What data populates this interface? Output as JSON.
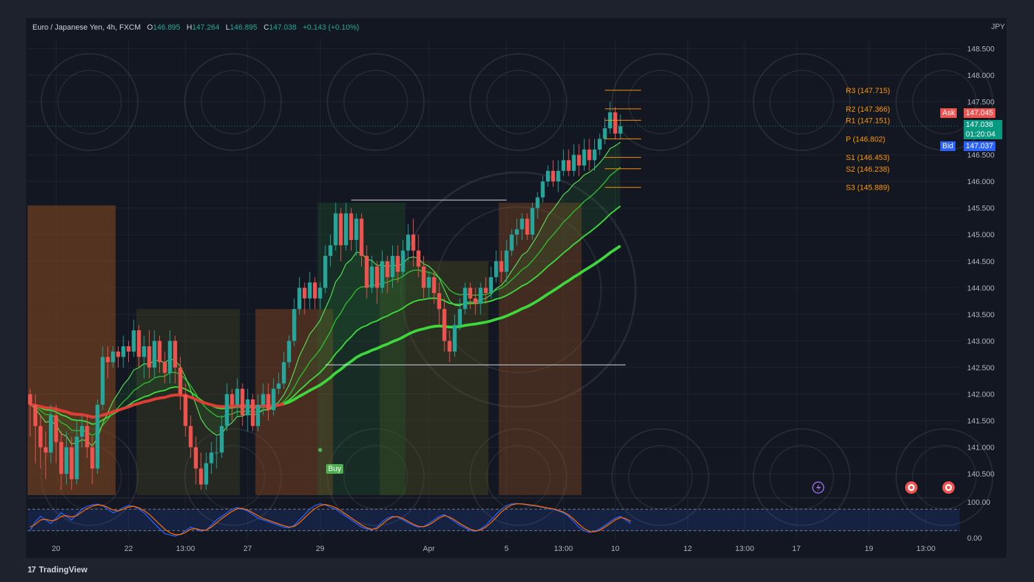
{
  "header": {
    "symbol": "Euro / Japanese Yen, 4h, FXCM",
    "open_key": "O",
    "open": "146.895",
    "high_key": "H",
    "high": "147.264",
    "low_key": "L",
    "low": "146.895",
    "close_key": "C",
    "close": "147.038",
    "change": "+0.143 (+0.10%)"
  },
  "currency": "JPY",
  "branding": "TradingView",
  "quote": {
    "ask_label": "Ask",
    "ask": "147.045",
    "last": "147.038",
    "countdown": "01:20:04",
    "bid_label": "Bid",
    "bid": "147.037"
  },
  "signal_label": "Buy",
  "colors": {
    "background": "#131722",
    "up": "#26a69a",
    "down": "#ef5350",
    "pivot": "#ff9800",
    "ema_green": "#3dd63d",
    "ema_red": "#e53935",
    "ask": "#ef5350",
    "bid": "#2962ff",
    "last": "#089981"
  },
  "chart_data": {
    "type": "candlestick",
    "ylim": [
      140.1,
      148.7
    ],
    "y_ticks": [
      "148.500",
      "148.000",
      "147.500",
      "146.500",
      "146.000",
      "145.500",
      "145.000",
      "144.500",
      "144.000",
      "143.500",
      "143.000",
      "142.500",
      "142.000",
      "141.500",
      "141.000",
      "140.500"
    ],
    "y_tick_values": [
      148.5,
      148.0,
      147.5,
      146.5,
      146.0,
      145.5,
      145.0,
      144.5,
      144.0,
      143.5,
      143.0,
      142.5,
      142.0,
      141.5,
      141.0,
      140.5
    ],
    "x_ticks": [
      {
        "label": "20",
        "index": 5
      },
      {
        "label": "22",
        "index": 19
      },
      {
        "label": "13:00",
        "index": 30
      },
      {
        "label": "27",
        "index": 42
      },
      {
        "label": "29",
        "index": 56
      },
      {
        "label": "Apr",
        "index": 77
      },
      {
        "label": "5",
        "index": 92
      },
      {
        "label": "13:00",
        "index": 103
      },
      {
        "label": "10",
        "index": 113
      },
      {
        "label": "12",
        "index": 127
      },
      {
        "label": "13:00",
        "index": 138
      },
      {
        "label": "17",
        "index": 148
      },
      {
        "label": "19",
        "index": 162
      },
      {
        "label": "13:00",
        "index": 173
      }
    ],
    "total_slots": 180,
    "candles": [
      [
        142.0,
        141.8,
        142.1,
        141.2
      ],
      [
        141.8,
        141.4,
        142.0,
        140.7
      ],
      [
        141.4,
        141.0,
        141.6,
        140.6
      ],
      [
        141.0,
        140.9,
        141.3,
        140.4
      ],
      [
        140.9,
        141.6,
        141.8,
        140.7
      ],
      [
        141.6,
        141.1,
        141.8,
        140.7
      ],
      [
        141.1,
        140.5,
        141.3,
        140.2
      ],
      [
        140.5,
        141.0,
        141.3,
        140.3
      ],
      [
        141.0,
        140.4,
        141.2,
        140.2
      ],
      [
        140.4,
        141.2,
        141.5,
        140.3
      ],
      [
        141.2,
        141.4,
        141.6,
        141.0
      ],
      [
        141.4,
        141.0,
        141.6,
        140.8
      ],
      [
        141.0,
        140.6,
        141.2,
        140.3
      ],
      [
        140.6,
        141.8,
        141.9,
        140.5
      ],
      [
        141.8,
        142.7,
        142.9,
        141.7
      ],
      [
        142.7,
        142.6,
        142.9,
        142.3
      ],
      [
        142.6,
        142.8,
        142.9,
        142.5
      ],
      [
        142.8,
        142.7,
        142.9,
        142.5
      ],
      [
        142.7,
        142.9,
        143.1,
        142.5
      ],
      [
        142.9,
        142.8,
        143.0,
        142.6
      ],
      [
        142.8,
        143.2,
        143.4,
        142.7
      ],
      [
        143.2,
        142.7,
        143.3,
        142.5
      ],
      [
        142.7,
        142.9,
        143.1,
        142.3
      ],
      [
        142.9,
        142.5,
        143.2,
        142.3
      ],
      [
        142.5,
        143.0,
        143.2,
        142.3
      ],
      [
        143.0,
        142.6,
        143.1,
        142.4
      ],
      [
        142.6,
        142.4,
        142.8,
        142.2
      ],
      [
        142.4,
        143.0,
        143.2,
        142.2
      ],
      [
        143.0,
        142.5,
        143.1,
        142.2
      ],
      [
        142.5,
        142.0,
        142.7,
        141.7
      ],
      [
        142.0,
        141.4,
        142.2,
        141.2
      ],
      [
        141.4,
        141.0,
        141.6,
        140.8
      ],
      [
        141.0,
        140.6,
        141.2,
        140.3
      ],
      [
        140.6,
        140.3,
        140.9,
        140.2
      ],
      [
        140.3,
        140.7,
        140.9,
        140.2
      ],
      [
        140.7,
        140.9,
        141.1,
        140.5
      ],
      [
        140.9,
        140.9,
        141.2,
        140.6
      ],
      [
        140.9,
        141.4,
        141.6,
        140.8
      ],
      [
        141.4,
        142.0,
        142.2,
        141.3
      ],
      [
        142.0,
        141.8,
        142.1,
        141.5
      ],
      [
        141.8,
        142.1,
        142.3,
        141.6
      ],
      [
        142.1,
        141.6,
        142.2,
        141.4
      ],
      [
        141.6,
        141.9,
        142.1,
        141.3
      ],
      [
        141.9,
        141.4,
        142.0,
        141.3
      ],
      [
        141.4,
        141.8,
        142.0,
        141.3
      ],
      [
        141.8,
        142.0,
        142.2,
        141.6
      ],
      [
        142.0,
        141.7,
        142.2,
        141.5
      ],
      [
        141.7,
        142.1,
        142.3,
        141.6
      ],
      [
        142.1,
        142.2,
        142.4,
        142.0
      ],
      [
        142.2,
        142.6,
        142.8,
        142.1
      ],
      [
        142.6,
        143.0,
        143.1,
        142.5
      ],
      [
        143.0,
        143.6,
        143.8,
        142.9
      ],
      [
        143.6,
        144.0,
        144.2,
        143.5
      ],
      [
        144.0,
        143.8,
        144.1,
        143.5
      ],
      [
        143.8,
        144.1,
        144.3,
        143.6
      ],
      [
        144.1,
        143.8,
        144.2,
        143.6
      ],
      [
        143.8,
        144.0,
        144.1,
        143.6
      ],
      [
        144.0,
        144.6,
        144.8,
        143.9
      ],
      [
        144.6,
        144.8,
        145.0,
        144.4
      ],
      [
        144.8,
        145.4,
        145.6,
        144.7
      ],
      [
        145.4,
        144.8,
        145.5,
        144.5
      ],
      [
        144.8,
        145.4,
        145.6,
        144.7
      ],
      [
        145.4,
        144.9,
        145.5,
        144.7
      ],
      [
        144.9,
        145.3,
        145.4,
        144.6
      ],
      [
        145.3,
        144.6,
        145.4,
        144.4
      ],
      [
        144.6,
        144.0,
        144.8,
        143.8
      ],
      [
        144.0,
        144.4,
        144.6,
        143.9
      ],
      [
        144.4,
        144.0,
        144.5,
        143.7
      ],
      [
        144.0,
        144.5,
        144.7,
        143.9
      ],
      [
        144.5,
        144.2,
        144.6,
        143.9
      ],
      [
        144.2,
        144.6,
        144.8,
        144.0
      ],
      [
        144.6,
        144.3,
        144.8,
        144.1
      ],
      [
        144.3,
        144.7,
        144.9,
        144.2
      ],
      [
        144.7,
        145.0,
        145.2,
        144.5
      ],
      [
        145.0,
        144.7,
        145.3,
        144.4
      ],
      [
        144.7,
        144.4,
        145.0,
        144.2
      ],
      [
        144.4,
        144.0,
        144.6,
        143.8
      ],
      [
        144.0,
        144.2,
        144.3,
        143.8
      ],
      [
        144.2,
        143.9,
        144.3,
        143.7
      ],
      [
        143.9,
        143.6,
        144.1,
        143.3
      ],
      [
        143.6,
        143.0,
        143.8,
        142.8
      ],
      [
        143.0,
        142.8,
        143.2,
        142.6
      ],
      [
        142.8,
        143.3,
        143.5,
        142.7
      ],
      [
        143.3,
        143.6,
        143.8,
        143.2
      ],
      [
        143.6,
        144.0,
        144.1,
        143.5
      ],
      [
        144.0,
        143.8,
        144.1,
        143.6
      ],
      [
        143.8,
        143.7,
        144.0,
        143.5
      ],
      [
        143.7,
        144.0,
        144.1,
        143.5
      ],
      [
        144.0,
        143.9,
        144.2,
        143.7
      ],
      [
        143.9,
        144.2,
        144.4,
        143.8
      ],
      [
        144.2,
        144.5,
        144.7,
        144.1
      ],
      [
        144.5,
        144.3,
        144.7,
        144.1
      ],
      [
        144.3,
        144.7,
        144.9,
        144.1
      ],
      [
        144.7,
        145.0,
        145.1,
        144.6
      ],
      [
        145.0,
        145.1,
        145.3,
        144.8
      ],
      [
        145.1,
        145.3,
        145.4,
        144.9
      ],
      [
        145.3,
        145.0,
        145.4,
        144.9
      ],
      [
        145.0,
        145.5,
        145.6,
        144.9
      ],
      [
        145.5,
        145.7,
        145.8,
        145.3
      ],
      [
        145.7,
        146.0,
        146.1,
        145.6
      ],
      [
        146.0,
        146.2,
        146.3,
        145.9
      ],
      [
        146.2,
        146.0,
        146.4,
        145.9
      ],
      [
        146.0,
        146.2,
        146.4,
        145.8
      ],
      [
        146.2,
        146.4,
        146.6,
        146.1
      ],
      [
        146.4,
        146.2,
        146.6,
        146.1
      ],
      [
        146.2,
        146.5,
        146.7,
        146.1
      ],
      [
        146.5,
        146.3,
        146.7,
        146.1
      ],
      [
        146.3,
        146.6,
        146.8,
        146.2
      ],
      [
        146.6,
        146.4,
        146.8,
        146.2
      ],
      [
        146.4,
        146.6,
        146.8,
        146.2
      ],
      [
        146.6,
        146.8,
        146.9,
        146.5
      ],
      [
        146.8,
        147.0,
        147.2,
        146.7
      ],
      [
        147.0,
        147.3,
        147.5,
        146.9
      ],
      [
        147.3,
        146.9,
        147.4,
        146.8
      ],
      [
        146.9,
        147.04,
        147.26,
        146.8
      ]
    ],
    "pivots": {
      "R3": 147.715,
      "R2": 147.366,
      "R1": 147.151,
      "P": 146.802,
      "S1": 146.453,
      "S2": 146.238,
      "S3": 145.889
    },
    "pivot_labels": [
      "R3 (147.715)",
      "R2 (147.366)",
      "R1 (147.151)",
      "P (146.802)",
      "S1 (146.453)",
      "S2 (146.238)",
      "S3 (145.889)"
    ],
    "oscillator": {
      "ylim": [
        0,
        100
      ],
      "y_ticks": [
        "100.00",
        "0.00"
      ],
      "upper_band": 80,
      "lower_band": 20,
      "k_line": [
        20,
        45,
        60,
        50,
        40,
        55,
        70,
        60,
        50,
        65,
        80,
        88,
        92,
        94,
        90,
        80,
        70,
        75,
        85,
        90,
        88,
        80,
        70,
        55,
        40,
        25,
        12,
        8,
        5,
        10,
        20,
        30,
        25,
        18,
        22,
        35,
        50,
        60,
        70,
        80,
        85,
        80,
        75,
        65,
        55,
        50,
        45,
        40,
        35,
        30,
        28,
        35,
        50,
        65,
        80,
        90,
        95,
        92,
        85,
        80,
        70,
        60,
        50,
        40,
        30,
        25,
        22,
        30,
        45,
        55,
        60,
        58,
        50,
        42,
        35,
        30,
        32,
        40,
        50,
        60,
        65,
        55,
        45,
        35,
        28,
        20,
        18,
        25,
        35,
        50,
        65,
        80,
        90,
        95,
        96,
        94,
        92,
        90,
        88,
        85,
        82,
        80,
        75,
        70,
        60,
        45,
        30,
        20,
        15,
        18,
        25,
        35,
        45,
        55,
        60,
        50,
        40
      ],
      "d_line": [
        30,
        38,
        50,
        52,
        48,
        50,
        60,
        62,
        58,
        62,
        72,
        82,
        88,
        92,
        91,
        85,
        78,
        75,
        80,
        86,
        88,
        84,
        76,
        66,
        52,
        38,
        24,
        14,
        9,
        9,
        15,
        24,
        26,
        22,
        22,
        30,
        42,
        54,
        64,
        74,
        81,
        82,
        78,
        70,
        62,
        54,
        49,
        44,
        39,
        34,
        30,
        32,
        42,
        56,
        70,
        82,
        90,
        93,
        90,
        84,
        76,
        66,
        56,
        46,
        36,
        28,
        24,
        26,
        38,
        50,
        58,
        59,
        54,
        46,
        38,
        32,
        31,
        36,
        45,
        55,
        62,
        58,
        50,
        40,
        32,
        24,
        20,
        22,
        30,
        42,
        57,
        72,
        84,
        92,
        95,
        95,
        93,
        91,
        89,
        86,
        83,
        81,
        77,
        72,
        64,
        52,
        38,
        26,
        18,
        17,
        21,
        30,
        40,
        50,
        57,
        54,
        46
      ]
    }
  }
}
